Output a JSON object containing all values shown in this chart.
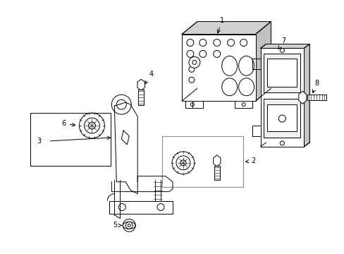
{
  "background_color": "#ffffff",
  "fig_width": 4.89,
  "fig_height": 3.6,
  "dpi": 100,
  "line_color": "#000000",
  "gray_color": "#cccccc",
  "dark_gray": "#888888"
}
